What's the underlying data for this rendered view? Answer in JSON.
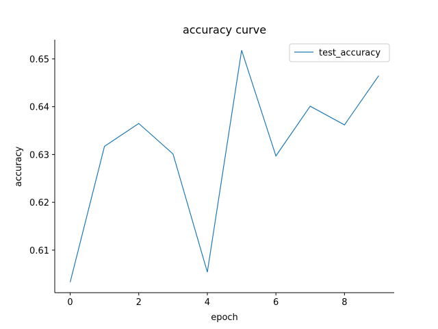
{
  "chart_data": {
    "type": "line",
    "title": "accuracy curve",
    "xlabel": "epoch",
    "ylabel": "accuracy",
    "x": [
      0,
      1,
      2,
      3,
      4,
      5,
      6,
      7,
      8,
      9
    ],
    "series": [
      {
        "name": "test_accuracy",
        "color": "#1f77b4",
        "values": [
          0.6033,
          0.6317,
          0.6365,
          0.6301,
          0.6054,
          0.6518,
          0.6297,
          0.6401,
          0.6362,
          0.6465
        ]
      }
    ],
    "xticks": [
      0,
      2,
      4,
      6,
      8
    ],
    "yticks": [
      0.61,
      0.62,
      0.63,
      0.64,
      0.65
    ],
    "xlim": [
      -0.45,
      9.45
    ],
    "ylim": [
      0.6011,
      0.654
    ],
    "legend": "top-right",
    "grid": false,
    "spines": [
      "left",
      "bottom"
    ]
  }
}
